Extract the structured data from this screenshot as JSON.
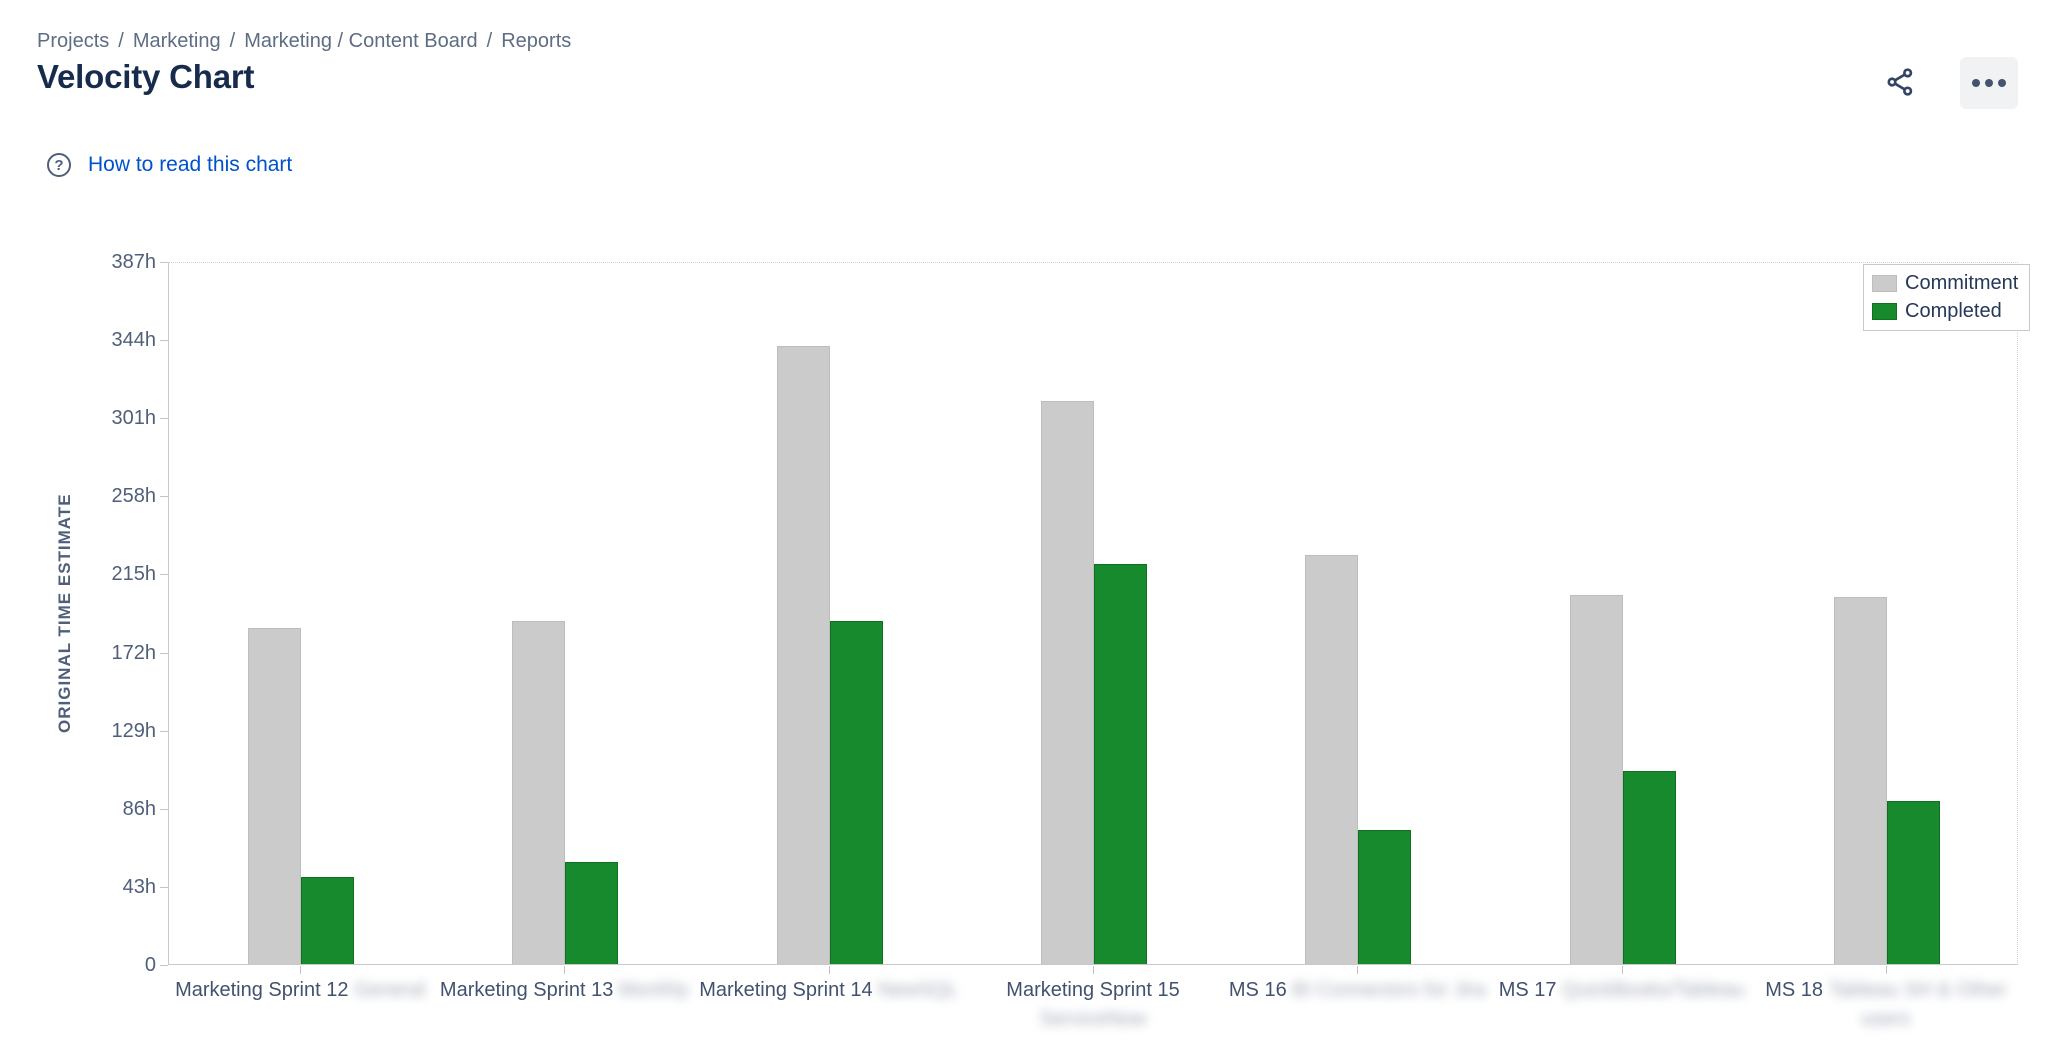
{
  "breadcrumb": {
    "separator": "/",
    "items": [
      "Projects",
      "Marketing",
      "Marketing / Content Board",
      "Reports"
    ]
  },
  "page": {
    "title": "Velocity Chart"
  },
  "toolbar": {
    "share_icon": "share-icon",
    "more_icon": "ellipsis-icon"
  },
  "help": {
    "icon": "question-circle-icon",
    "icon_glyph": "?",
    "label": "How to read this chart"
  },
  "chart_data": {
    "type": "bar",
    "title": "",
    "xlabel": "",
    "ylabel": "ORIGINAL TIME ESTIMATE",
    "unit": "h",
    "ylim": [
      0,
      387
    ],
    "ytick_step": 43,
    "yticks": [
      "0",
      "43h",
      "86h",
      "129h",
      "172h",
      "215h",
      "258h",
      "301h",
      "344h",
      "387h"
    ],
    "grid": false,
    "legend_position": "top-right",
    "categories": [
      {
        "line1": "Marketing Sprint 12",
        "line1_redacted": "General",
        "line2_redacted": ""
      },
      {
        "line1": "Marketing Sprint 13",
        "line1_redacted": "Monthly",
        "line2_redacted": ""
      },
      {
        "line1": "Marketing Sprint 14",
        "line1_redacted": "NewSQL",
        "line2_redacted": ""
      },
      {
        "line1": "Marketing Sprint 15",
        "line1_redacted": "",
        "line2_redacted": "ServiceNow"
      },
      {
        "line1": "MS 16",
        "line1_redacted": "BI Connectors for Jira",
        "line2_redacted": ""
      },
      {
        "line1": "MS 17",
        "line1_redacted": "QuickBooks/Tableau",
        "line2_redacted": ""
      },
      {
        "line1": "MS 18",
        "line1_redacted": "Tableau SH & Other",
        "line2_redacted": "users"
      }
    ],
    "series": [
      {
        "name": "Commitment",
        "color": "#cbcbcb",
        "border": "#bdbdbd",
        "values": [
          185,
          189,
          340,
          310,
          225,
          203,
          202
        ]
      },
      {
        "name": "Completed",
        "color": "#168a2c",
        "border": "#0f7020",
        "values": [
          48,
          56,
          189,
          220,
          74,
          106,
          90
        ]
      }
    ]
  },
  "colors": {
    "title_text": "#172B4D",
    "breadcrumb_text": "#5E6C84",
    "link_blue": "#0052CC",
    "axis_text": "#505F79",
    "axis_line": "#c9c9c9",
    "bar_commitment": "#cbcbcb",
    "bar_completed": "#168a2c"
  }
}
